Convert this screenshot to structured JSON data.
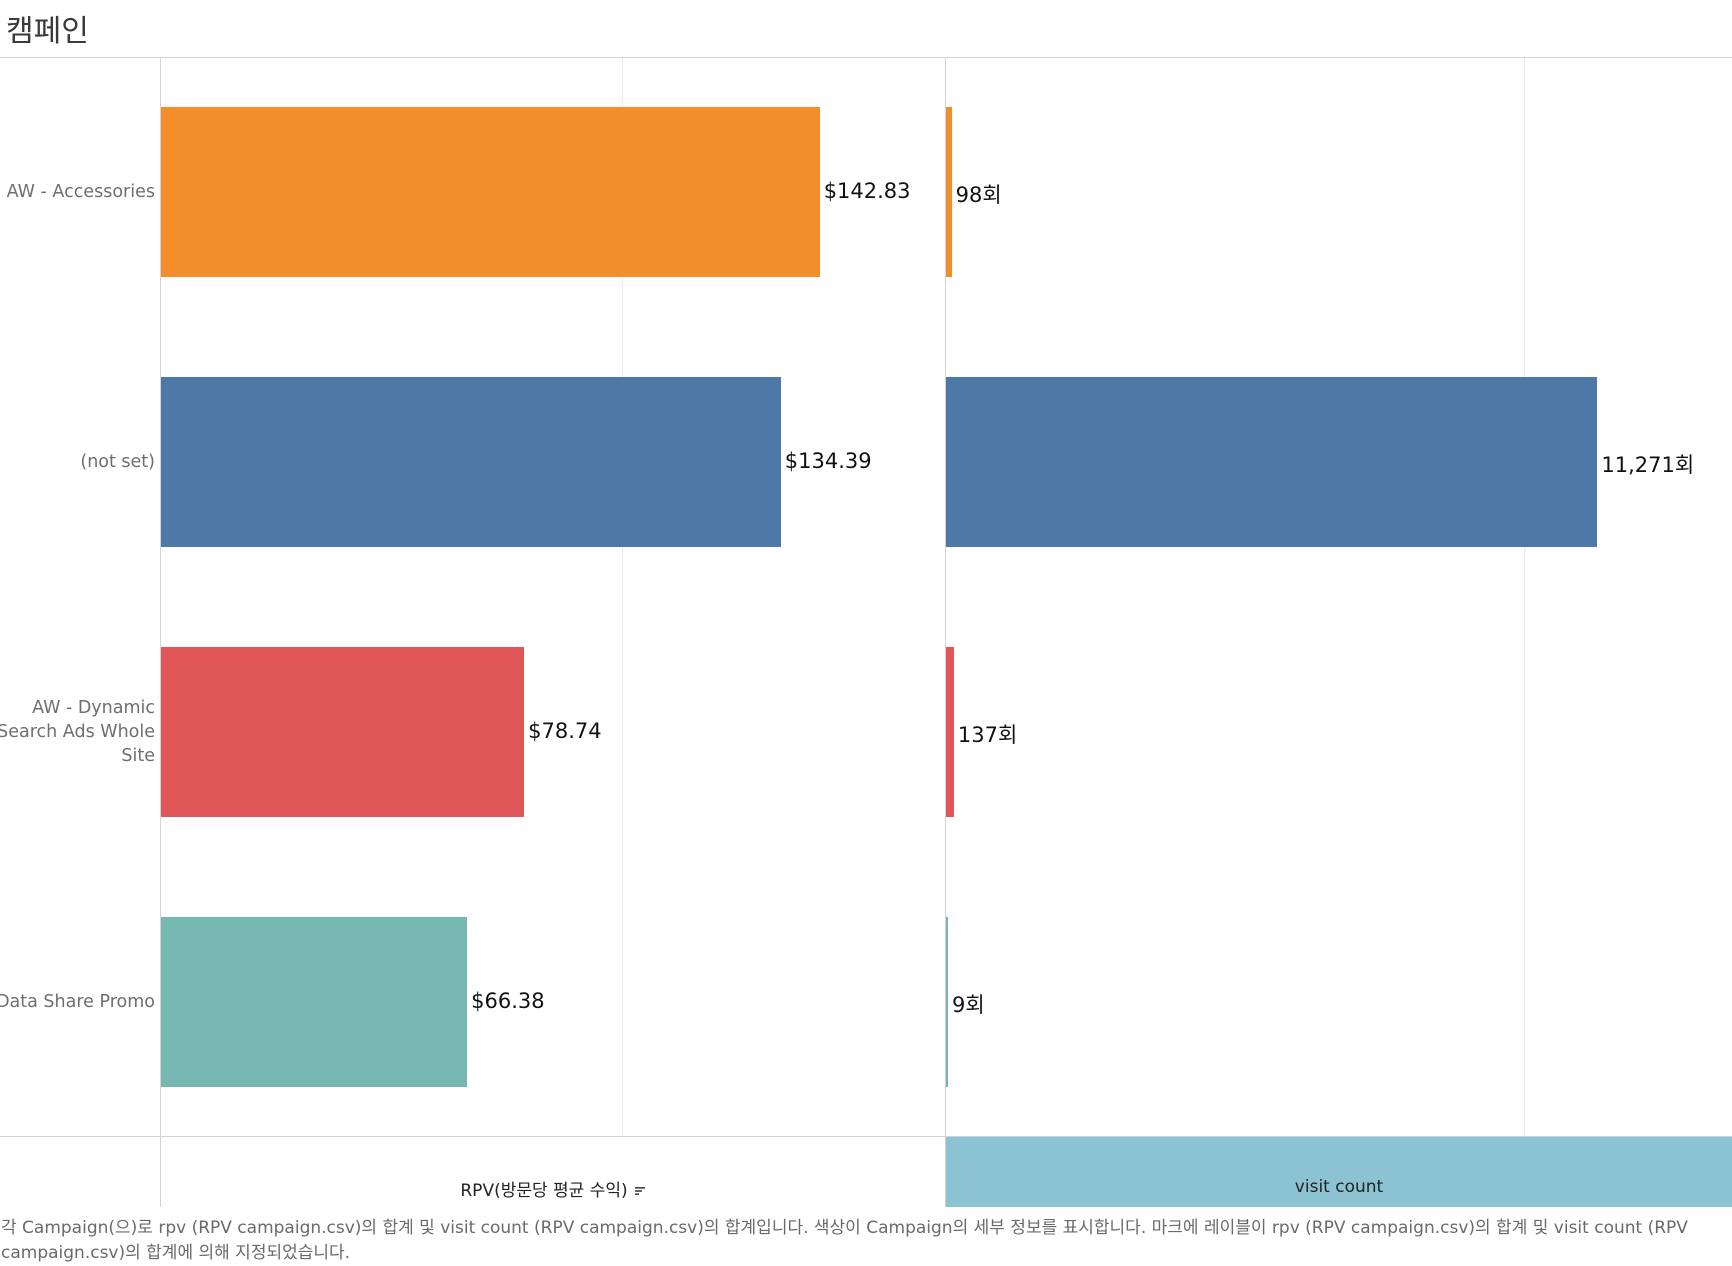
{
  "header": {
    "title": "캠페인"
  },
  "chart_data": {
    "type": "bar",
    "orientation": "horizontal",
    "categories": [
      "AW - Accessories",
      "(not set)",
      "AW - Dynamic Search Ads Whole Site",
      "Data Share Promo"
    ],
    "colors": [
      "#f28e2b",
      "#4e79a7",
      "#e15759",
      "#76b7b2"
    ],
    "series": [
      {
        "name": "RPV(방문당 평균 수익)",
        "values": [
          142.83,
          134.39,
          78.74,
          66.38
        ],
        "labels": [
          "$142.83",
          "$134.39",
          "$78.74",
          "$66.38"
        ],
        "xlim": [
          0,
          170
        ]
      },
      {
        "name": "visit count",
        "values": [
          98,
          11271,
          137,
          9
        ],
        "labels": [
          "98회",
          "11,271회",
          "137회",
          "9회"
        ],
        "xlim": [
          0,
          13600
        ]
      }
    ],
    "xlabel_left": "RPV(방문당 평균 수익)",
    "xlabel_right": "visit count",
    "ylabel": "캠페인",
    "grid": true
  },
  "caption": "각 Campaign(으)로 rpv (RPV campaign.csv)의 합계 및 visit count (RPV campaign.csv)의 합계입니다. 색상이 Campaign의 세부 정보를 표시합니다. 마크에 레이블이 rpv (RPV campaign.csv)의 합계 및 visit count (RPV campaign.csv)의 합계에 의해 지정되었습니다."
}
